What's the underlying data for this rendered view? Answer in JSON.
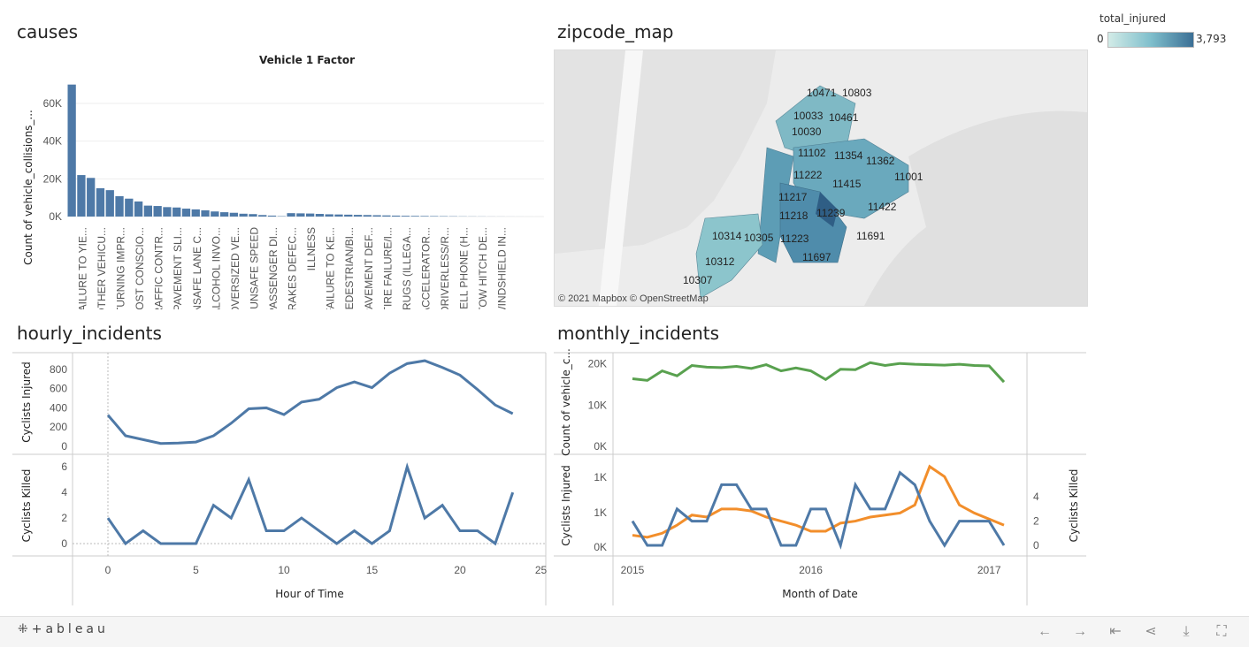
{
  "titles": {
    "causes": "causes",
    "zipcode_map": "zipcode_map",
    "hourly": "hourly_incidents",
    "monthly": "monthly_incidents"
  },
  "legend": {
    "title": "total_injured",
    "min": "0",
    "max": "3,793"
  },
  "map": {
    "attribution": "© 2021 Mapbox  © OpenStreetMap",
    "zip_labels": [
      "10471",
      "10803",
      "10033",
      "10461",
      "10030",
      "11102",
      "11354",
      "11362",
      "11222",
      "11001",
      "11415",
      "11217",
      "11422",
      "11218",
      "11239",
      "10314",
      "10305",
      "11223",
      "11691",
      "10312",
      "11697",
      "10307"
    ]
  },
  "footer": {
    "logo": "+ableau",
    "icons": [
      "undo-icon",
      "redo-icon",
      "revert-icon",
      "share-icon",
      "download-icon",
      "fullscreen-icon"
    ]
  },
  "chart_data": [
    {
      "type": "bar",
      "title": "Vehicle 1 Factor",
      "ylabel": "Count of vehicle_collisions_...",
      "xlabel": "",
      "yticks": [
        "60K",
        "40K",
        "20K",
        "0K"
      ],
      "categories": [
        "FAILURE TO YIE...",
        "OTHER VEHICU...",
        "TURNING IMPR...",
        "LOST CONSCIO...",
        "TRAFFIC CONTR...",
        "PAVEMENT SLI...",
        "UNSAFE LANE C...",
        "ALCOHOL INVO...",
        "OVERSIZED VE...",
        "UNSAFE SPEED",
        "PASSENGER DI...",
        "BRAKES DEFEC...",
        "ILLNESS",
        "FAILURE TO KE...",
        "PEDESTRIAN/BI...",
        "PAVEMENT DEF...",
        "TIRE FAILURE/I...",
        "DRUGS (ILLEGA...",
        "ACCELERATOR...",
        "DRIVERLESS/R...",
        "CELL PHONE (H...",
        "TOW HITCH DE...",
        "WINDSHIELD IN..."
      ],
      "values": [
        70000,
        22000,
        20500,
        15000,
        14000,
        10800,
        9500,
        8000,
        5800,
        5600,
        5000,
        4800,
        4200,
        3800,
        3300,
        2700,
        2300,
        2000,
        1500,
        1300,
        800,
        500,
        200
      ],
      "extra_values": [
        1800,
        1700,
        1600,
        1400,
        1200,
        1100,
        1000,
        900,
        800,
        700,
        600,
        500,
        400,
        350,
        300,
        250,
        200,
        150,
        100,
        80,
        60,
        40,
        30,
        20,
        15,
        10,
        8
      ],
      "ylim": [
        0,
        75000
      ]
    },
    {
      "type": "line",
      "title": "",
      "xlabel": "Hour of Time",
      "ylabel": "Cyclists Injured",
      "x": [
        0,
        1,
        2,
        3,
        4,
        5,
        6,
        7,
        8,
        9,
        10,
        11,
        12,
        13,
        14,
        15,
        16,
        17,
        18,
        19,
        20,
        21,
        22,
        23
      ],
      "values": [
        325,
        110,
        70,
        30,
        35,
        45,
        110,
        240,
        390,
        400,
        330,
        460,
        490,
        610,
        670,
        610,
        760,
        860,
        890,
        820,
        740,
        590,
        430,
        340
      ],
      "yticks": [
        "800",
        "600",
        "400",
        "200",
        "0"
      ],
      "ylim": [
        0,
        900
      ],
      "color": "#4e79a7"
    },
    {
      "type": "line",
      "title": "",
      "xlabel": "Hour of Time",
      "ylabel": "Cyclists Killed",
      "x": [
        0,
        1,
        2,
        3,
        4,
        5,
        6,
        7,
        8,
        9,
        10,
        11,
        12,
        13,
        14,
        15,
        16,
        17,
        18,
        19,
        20,
        21,
        22,
        23
      ],
      "values": [
        2,
        0,
        1,
        0,
        0,
        0,
        3,
        2,
        5,
        1,
        1,
        2,
        1,
        0,
        1,
        0,
        1,
        6,
        2,
        3,
        1,
        1,
        0,
        4
      ],
      "yticks": [
        "6",
        "4",
        "2",
        "0"
      ],
      "xticks": [
        "0",
        "5",
        "10",
        "15",
        "20",
        "25"
      ],
      "ylim": [
        0,
        6.5
      ],
      "color": "#4e79a7"
    },
    {
      "type": "line",
      "title": "",
      "xlabel": "Month of Date",
      "ylabel": "Count of vehicle_c...",
      "x": [
        "2015-01",
        "2015-02",
        "2015-03",
        "2015-04",
        "2015-05",
        "2015-06",
        "2015-07",
        "2015-08",
        "2015-09",
        "2015-10",
        "2015-11",
        "2015-12",
        "2016-01",
        "2016-02",
        "2016-03",
        "2016-04",
        "2016-05",
        "2016-06",
        "2016-07",
        "2016-08",
        "2016-09",
        "2016-10",
        "2016-11",
        "2016-12",
        "2017-01",
        "2017-02"
      ],
      "values": [
        16400,
        16000,
        18300,
        17100,
        19600,
        19200,
        19100,
        19400,
        18900,
        19800,
        18300,
        19000,
        18300,
        16200,
        18700,
        18600,
        20300,
        19600,
        20100,
        19900,
        19800,
        19700,
        19900,
        19600,
        19500,
        15600
      ],
      "yticks": [
        "20K",
        "10K",
        "0K"
      ],
      "ylim": [
        0,
        21000
      ],
      "color": "#59a14f"
    },
    {
      "type": "line",
      "title": "",
      "xlabel": "Month of Date",
      "ylabel": "Cyclists Injured",
      "ylabel_right": "Cyclists Killed",
      "x": [
        "2015-01",
        "2015-02",
        "2015-03",
        "2015-04",
        "2015-05",
        "2015-06",
        "2015-07",
        "2015-08",
        "2015-09",
        "2015-10",
        "2015-11",
        "2015-12",
        "2016-01",
        "2016-02",
        "2016-03",
        "2016-04",
        "2016-05",
        "2016-06",
        "2016-07",
        "2016-08",
        "2016-09",
        "2016-10",
        "2016-11",
        "2016-12",
        "2017-01",
        "2017-02"
      ],
      "yticks_left": [
        "1K",
        "1K",
        "0K"
      ],
      "yticks_right": [
        "4",
        "2",
        "0"
      ],
      "xticks": [
        "2015",
        "2016",
        "2017"
      ],
      "series": [
        {
          "name": "Cyclists Injured",
          "axis": "left",
          "color": "#f28e2b",
          "values": [
            250,
            200,
            300,
            500,
            750,
            700,
            900,
            900,
            850,
            700,
            600,
            500,
            350,
            350,
            550,
            600,
            700,
            750,
            800,
            1000,
            1950,
            1700,
            1000,
            800,
            650,
            500
          ]
        },
        {
          "name": "Cyclists Killed",
          "axis": "right",
          "color": "#4e79a7",
          "values": [
            2,
            0,
            0,
            3,
            2,
            2,
            5,
            5,
            3,
            3,
            0,
            0,
            3,
            3,
            0,
            5,
            3,
            3,
            6,
            5,
            2,
            0,
            2,
            2,
            2,
            0
          ]
        }
      ],
      "ylim_left": [
        0,
        2100
      ],
      "ylim_right": [
        0,
        7
      ]
    }
  ]
}
